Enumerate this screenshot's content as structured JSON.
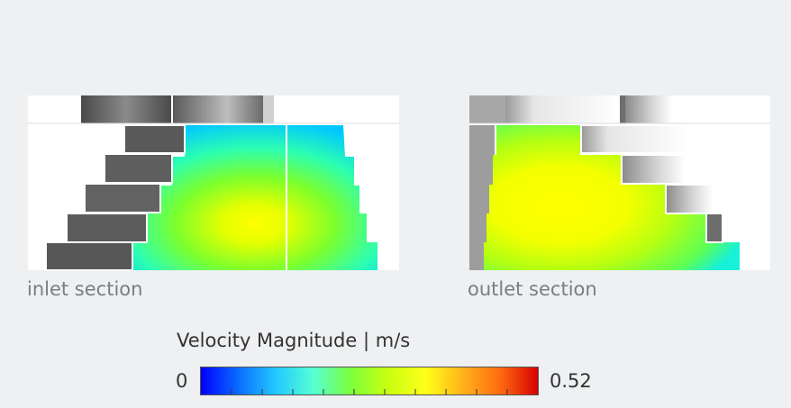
{
  "sections": {
    "inlet_label": "inlet section",
    "outlet_label": "outlet section"
  },
  "legend": {
    "title": "Velocity Magnitude | m/s",
    "min_label": "0",
    "max_label": "0.52",
    "min": 0,
    "max": 0.52,
    "colormap": [
      "#0000ff",
      "#0a6cff",
      "#22c8ff",
      "#55ffd5",
      "#7cff3c",
      "#c8ff10",
      "#ffff1a",
      "#ffb21a",
      "#ff6a10",
      "#d60000"
    ]
  }
}
